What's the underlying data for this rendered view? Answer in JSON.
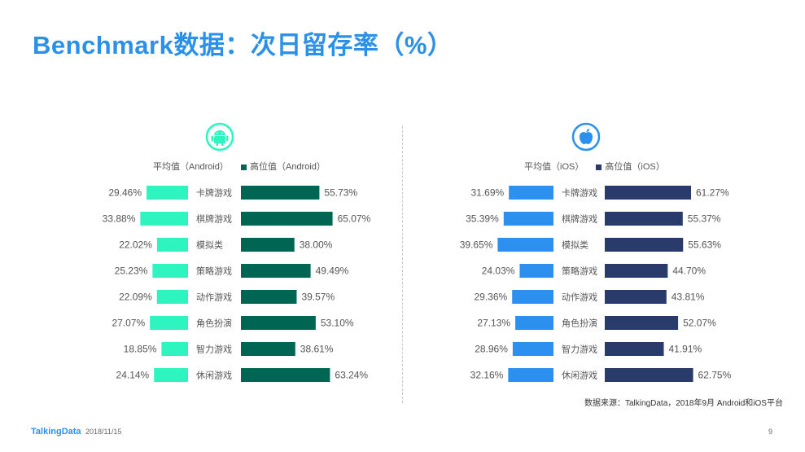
{
  "page": {
    "title": "Benchmark数据：次日留存率（%）",
    "source": "数据来源：TalkingData，2018年9月 Android和iOS平台",
    "logo": "TalkingData",
    "date": "2018/11/15",
    "page_number": "9"
  },
  "icons": {
    "android": "android-icon",
    "ios": "apple-icon"
  },
  "chart_data": [
    {
      "type": "bar",
      "platform": "Android",
      "categories": [
        "卡牌游戏",
        "棋牌游戏",
        "模拟类",
        "策略游戏",
        "动作游戏",
        "角色扮演",
        "智力游戏",
        "休闲游戏"
      ],
      "series": [
        {
          "name": "平均值（Android）",
          "color": "#2ef5c0",
          "values": [
            29.46,
            33.88,
            22.02,
            25.23,
            22.09,
            27.07,
            18.85,
            24.14
          ],
          "labels": [
            "29.46%",
            "33.88%",
            "22.02%",
            "25.23%",
            "22.09%",
            "27.07%",
            "18.85%",
            "24.14%"
          ]
        },
        {
          "name": "高位值（Android）",
          "color": "#006654",
          "values": [
            55.73,
            65.07,
            38.0,
            49.49,
            39.57,
            53.1,
            38.61,
            63.24
          ],
          "labels": [
            "55.73%",
            "65.07%",
            "38.00%",
            "49.49%",
            "39.57%",
            "53.10%",
            "38.61%",
            "63.24%"
          ]
        }
      ]
    },
    {
      "type": "bar",
      "platform": "iOS",
      "categories": [
        "卡牌游戏",
        "棋牌游戏",
        "模拟类",
        "策略游戏",
        "动作游戏",
        "角色扮演",
        "智力游戏",
        "休闲游戏"
      ],
      "series": [
        {
          "name": "平均值（iOS）",
          "color": "#2b90ee",
          "values": [
            31.69,
            35.39,
            39.65,
            24.03,
            29.36,
            27.13,
            28.96,
            32.16
          ],
          "labels": [
            "31.69%",
            "35.39%",
            "39.65%",
            "24.03%",
            "29.36%",
            "27.13%",
            "28.96%",
            "32.16%"
          ]
        },
        {
          "name": "高位值（iOS）",
          "color": "#283b6b",
          "values": [
            61.27,
            55.37,
            55.63,
            44.7,
            43.81,
            52.07,
            41.91,
            62.75
          ],
          "labels": [
            "61.27%",
            "55.37%",
            "55.63%",
            "44.70%",
            "43.81%",
            "52.07%",
            "41.91%",
            "62.75%"
          ]
        }
      ]
    }
  ]
}
